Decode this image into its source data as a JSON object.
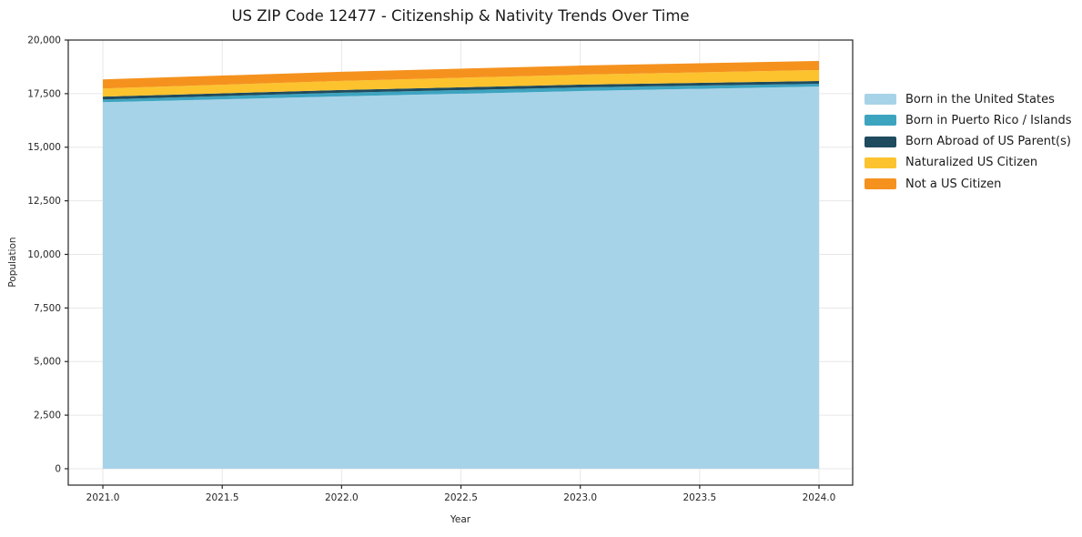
{
  "title": "US ZIP Code 12477 - Citizenship & Nativity Trends Over Time",
  "chart_data": {
    "type": "area",
    "stacked": true,
    "title": "US ZIP Code 12477 - Citizenship & Nativity Trends Over Time",
    "xlabel": "Year",
    "ylabel": "Population",
    "x": [
      2021,
      2022,
      2023,
      2024
    ],
    "series": [
      {
        "name": "Born in the United States",
        "color": "#a7d3e9",
        "values": [
          17100,
          17370,
          17620,
          17830
        ]
      },
      {
        "name": "Born in Puerto Rico / Islands",
        "color": "#3da4c0",
        "values": [
          130,
          170,
          170,
          130
        ]
      },
      {
        "name": "Born Abroad of US Parent(s)",
        "color": "#1f4b5e",
        "values": [
          130,
          130,
          130,
          130
        ]
      },
      {
        "name": "Naturalized US Citizen",
        "color": "#fcc32e",
        "values": [
          380,
          425,
          465,
          510
        ]
      },
      {
        "name": "Not a US Citizen",
        "color": "#f5921e",
        "values": [
          425,
          425,
          425,
          425
        ]
      }
    ],
    "xlim": [
      2020.855,
      2024.141
    ],
    "ylim": [
      -765,
      20000
    ],
    "xticks": [
      2021.0,
      2021.5,
      2022.0,
      2022.5,
      2023.0,
      2023.5,
      2024.0
    ],
    "xtick_labels": [
      "2021.0",
      "2021.5",
      "2022.0",
      "2022.5",
      "2023.0",
      "2023.5",
      "2024.0"
    ],
    "yticks": [
      0,
      2500,
      5000,
      7500,
      10000,
      12500,
      15000,
      17500,
      20000
    ],
    "ytick_labels": [
      "0",
      "2,500",
      "5,000",
      "7,500",
      "10,000",
      "12,500",
      "15,000",
      "17,500",
      "20,000"
    ],
    "grid": true,
    "legend_position": "right-outside"
  },
  "colors": {
    "background": "#ffffff",
    "grid": "#e7e7e7",
    "spine": "#262626",
    "text": "#1a1a1a"
  }
}
